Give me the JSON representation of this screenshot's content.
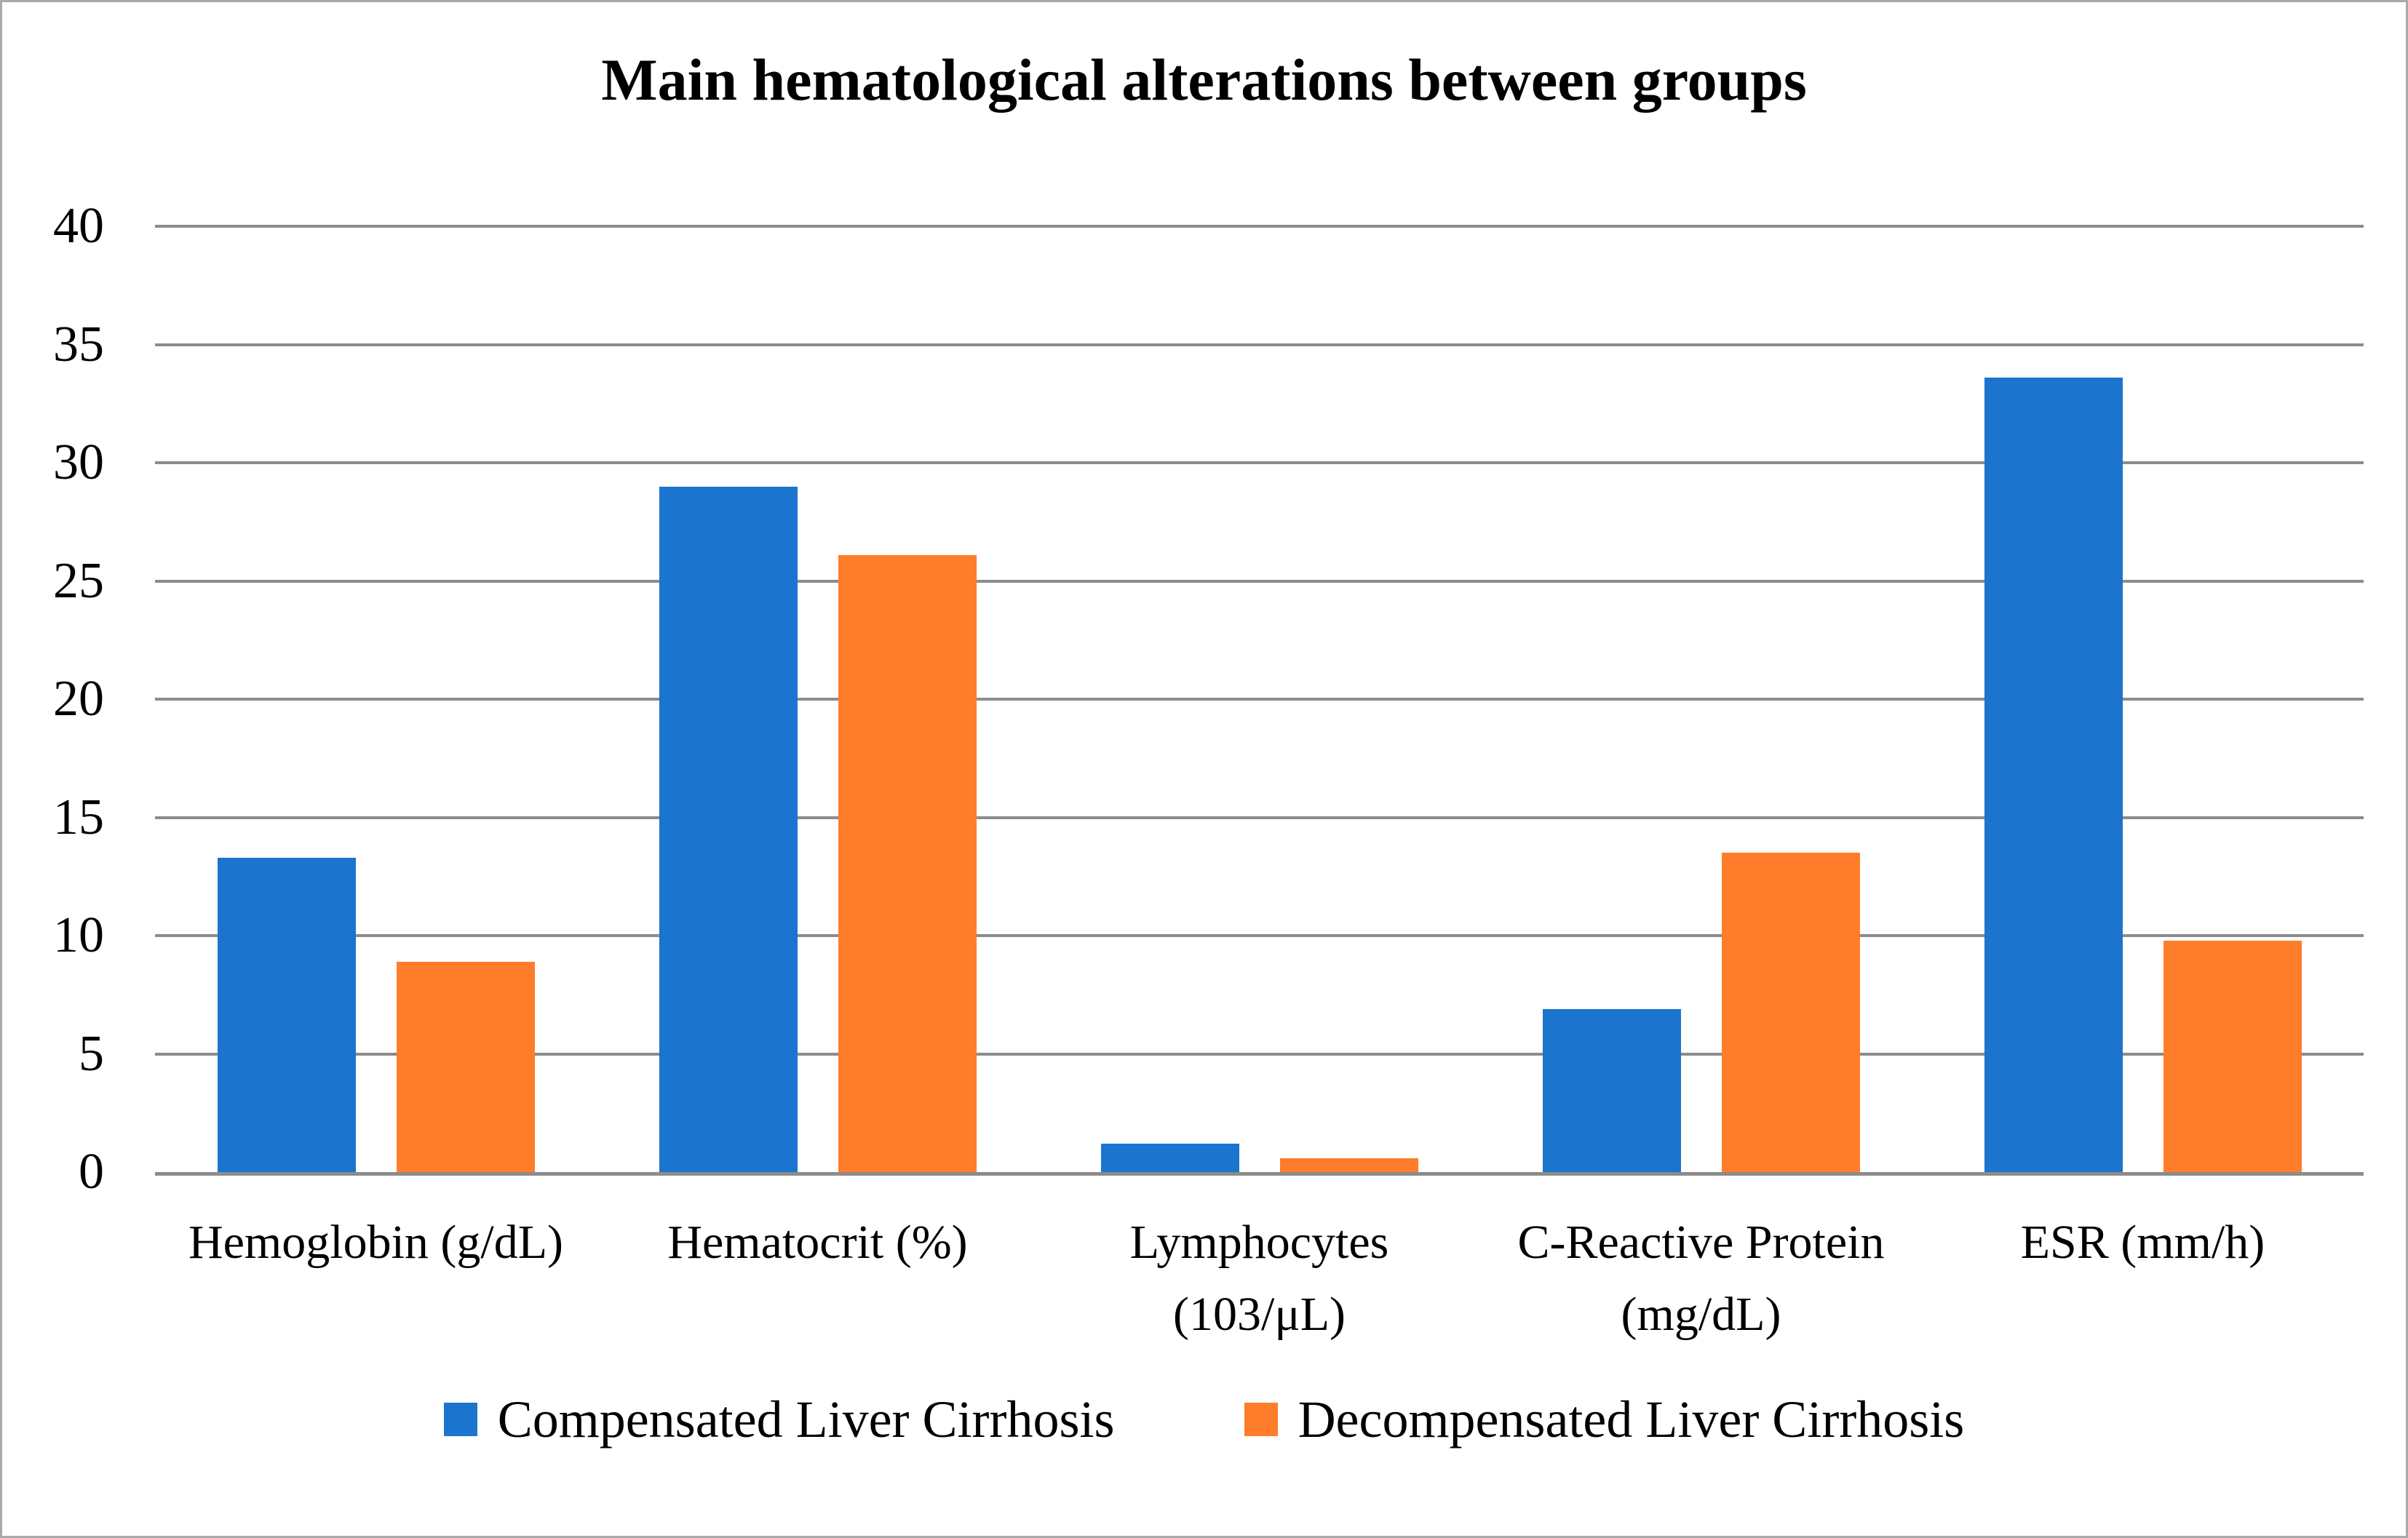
{
  "figure": {
    "title": "Main hematological alterations between groups"
  },
  "chart_data": {
    "type": "bar",
    "title": "Main hematological alterations between groups",
    "categories": [
      "Hemoglobin (g/dL)",
      "Hematocrit (%)",
      "Lymphocytes (103/μL)",
      "C-Reactive Protein (mg/dL)",
      "ESR (mm/h)"
    ],
    "category_label_lines": [
      [
        "Hemoglobin (g/dL)"
      ],
      [
        "Hematocrit (%)"
      ],
      [
        "Lymphocytes",
        "(103/μL)"
      ],
      [
        "C-Reactive Protein",
        "(mg/dL)"
      ],
      [
        "ESR (mm/h)"
      ]
    ],
    "series": [
      {
        "name": "Compensated Liver Cirrhosis",
        "color": "#1b74ce",
        "values": [
          13.3,
          29.0,
          1.2,
          6.9,
          33.6
        ]
      },
      {
        "name": "Decompensated Liver Cirrhosis",
        "color": "#ff7d2a",
        "values": [
          8.9,
          26.1,
          0.6,
          13.5,
          9.8
        ]
      }
    ],
    "ylim": [
      0,
      40
    ],
    "ytick_step": 5,
    "ytick_labels": [
      "0",
      "5",
      "10",
      "15",
      "20",
      "25",
      "30",
      "35",
      "40"
    ],
    "xlabel": "",
    "ylabel": "",
    "grid": true,
    "legend_position": "bottom",
    "gridline_color": "#8c8c8c",
    "border_color": "#a9a9a9",
    "background_color": "#ffffff"
  }
}
